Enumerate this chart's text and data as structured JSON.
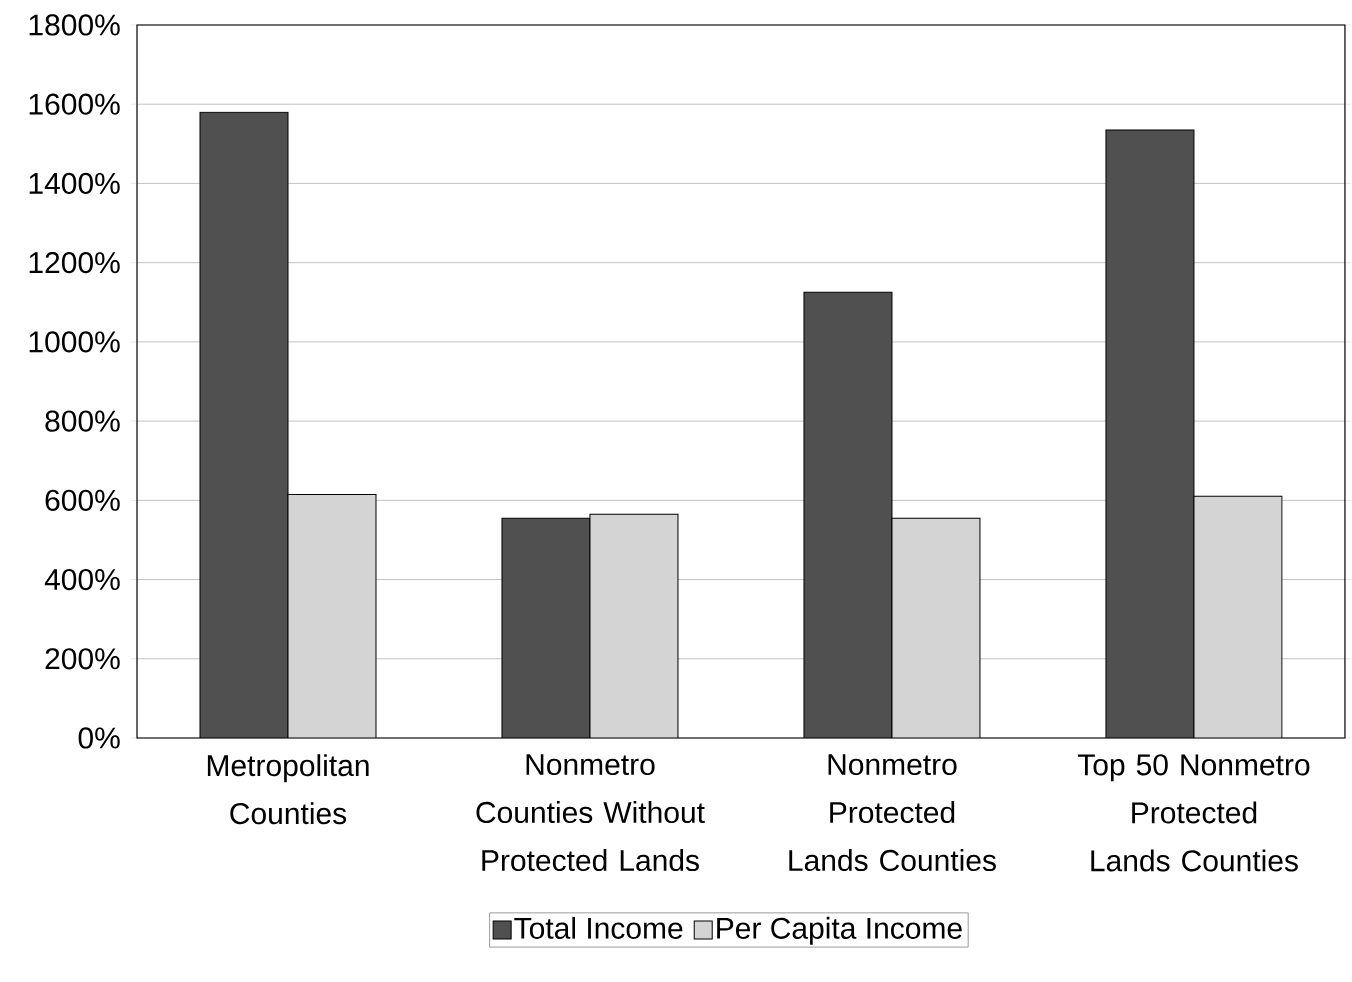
{
  "chart_data": {
    "type": "bar",
    "categories": [
      "Metropolitan Counties",
      "Nonmetro Counties Without Protected Lands",
      "Nonmetro Protected Lands Counties",
      "Top 50 Nonmetro Protected Lands Counties"
    ],
    "series": [
      {
        "name": "Total Income",
        "color": "#505050",
        "values": [
          1580,
          555,
          1125,
          1535
        ]
      },
      {
        "name": "Per Capita Income",
        "color": "#d4d4d4",
        "values": [
          615,
          565,
          555,
          610
        ]
      }
    ],
    "ylim": [
      0,
      1800
    ],
    "yticks": [
      {
        "value": 0,
        "label": "0%"
      },
      {
        "value": 200,
        "label": "200%"
      },
      {
        "value": 400,
        "label": "400%"
      },
      {
        "value": 600,
        "label": "600%"
      },
      {
        "value": 800,
        "label": "800%"
      },
      {
        "value": 1000,
        "label": "1000%"
      },
      {
        "value": 1200,
        "label": "1200%"
      },
      {
        "value": 1400,
        "label": "1400%"
      },
      {
        "value": 1600,
        "label": "1600%"
      },
      {
        "value": 1800,
        "label": "1800%"
      }
    ],
    "grid": "y",
    "legend": "bottom"
  }
}
